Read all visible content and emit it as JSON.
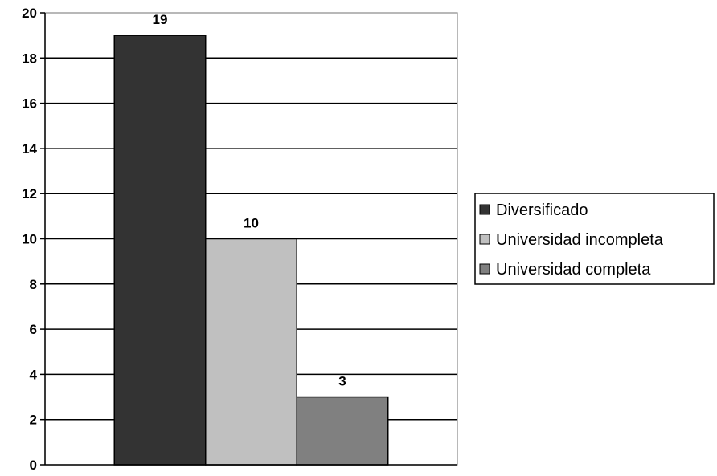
{
  "chart_data": {
    "type": "bar",
    "title": "",
    "xlabel": "",
    "ylabel": "",
    "ylim": [
      0,
      20
    ],
    "yticks": [
      "0",
      "2",
      "4",
      "6",
      "8",
      "10",
      "12",
      "14",
      "16",
      "18",
      "20"
    ],
    "grid": true,
    "legend_position": "right",
    "series": [
      {
        "name": "Diversificado",
        "value": 19,
        "label": "19",
        "color": "#333333"
      },
      {
        "name": "Universidad incompleta",
        "value": 10,
        "label": "10",
        "color": "#c0c0c0"
      },
      {
        "name": "Universidad completa",
        "value": 3,
        "label": "3",
        "color": "#808080"
      }
    ]
  }
}
